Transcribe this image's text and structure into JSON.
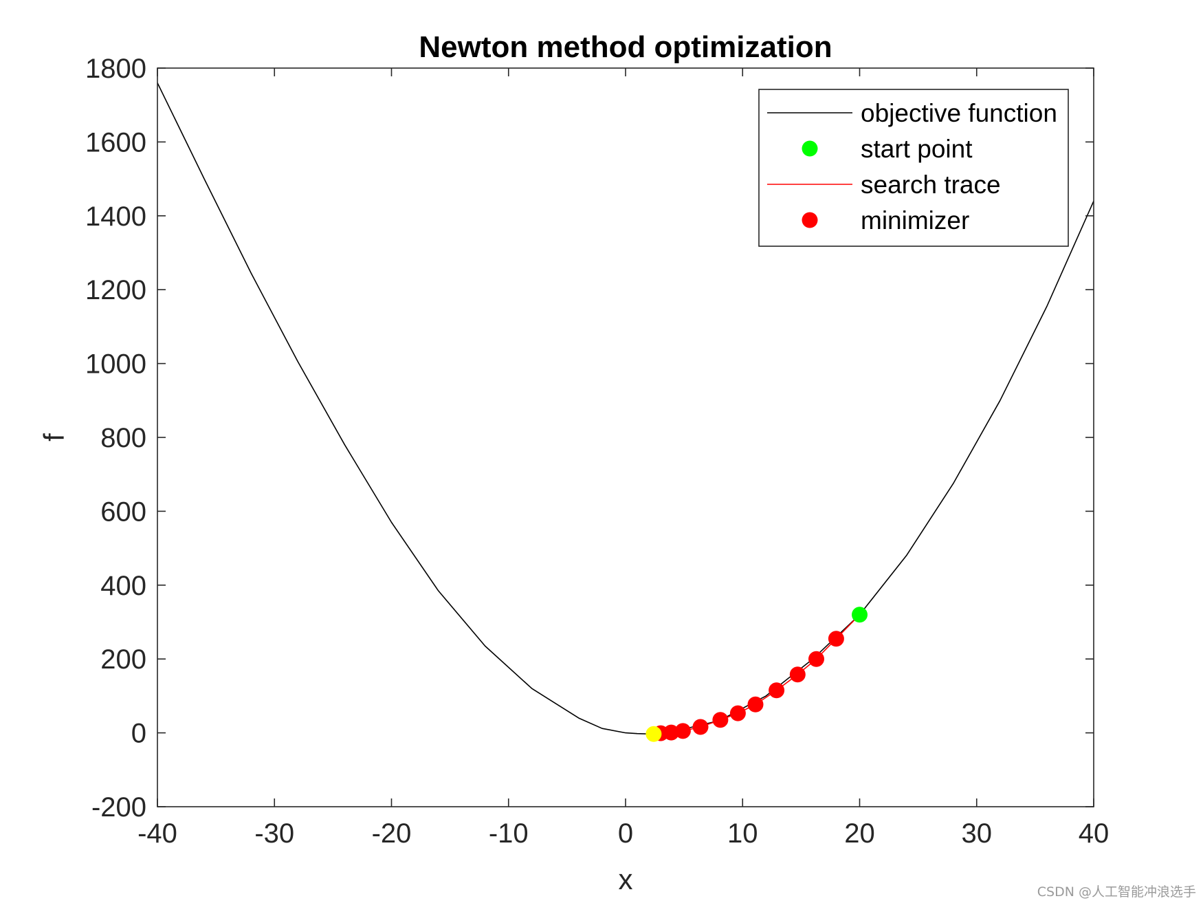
{
  "chart_data": {
    "type": "line",
    "title": "Newton method optimization",
    "xlabel": "x",
    "ylabel": "f",
    "xlim": [
      -40,
      40
    ],
    "ylim": [
      -200,
      1800
    ],
    "xticks": [
      -40,
      -30,
      -20,
      -10,
      0,
      10,
      20,
      30,
      40
    ],
    "yticks": [
      -200,
      0,
      200,
      400,
      600,
      800,
      1000,
      1200,
      1400,
      1600,
      1800
    ],
    "legend_position": "top-right",
    "grid": false,
    "series": [
      {
        "name": "objective function",
        "style": "line",
        "color": "#000000",
        "x": [
          -40,
          -36,
          -32,
          -28,
          -24,
          -20,
          -16,
          -12,
          -8,
          -4,
          -2,
          0,
          1,
          2,
          4,
          8,
          12,
          16,
          20,
          24,
          28,
          32,
          36,
          40
        ],
        "y": [
          1760,
          1500,
          1245,
          1005,
          780,
          570,
          385,
          235,
          120,
          40,
          12,
          0,
          -2,
          -3,
          3,
          33,
          100,
          200,
          320,
          480,
          675,
          900,
          1155,
          1440
        ]
      },
      {
        "name": "start point",
        "style": "marker",
        "color": "#00ff00",
        "x": [
          20
        ],
        "y": [
          320
        ]
      },
      {
        "name": "search trace",
        "style": "line",
        "color": "#ff0000",
        "x": [
          20,
          18.0,
          16.3,
          14.7,
          12.9,
          11.1,
          9.6,
          8.1,
          6.4,
          4.9,
          3.9,
          3.0,
          2.4
        ],
        "y": [
          320,
          255,
          200,
          158,
          115,
          77,
          53,
          35,
          16,
          5,
          1,
          -1,
          -3
        ]
      },
      {
        "name": "minimizer",
        "style": "marker",
        "color": "#ff0000",
        "x": [
          18.0,
          16.3,
          14.7,
          12.9,
          11.1,
          9.6,
          8.1,
          6.4,
          4.9,
          3.9,
          3.0
        ],
        "y": [
          255,
          200,
          158,
          115,
          77,
          53,
          35,
          16,
          5,
          1,
          -1
        ]
      },
      {
        "style": "marker",
        "color": "#ffff00",
        "x": [
          2.4
        ],
        "y": [
          -3
        ]
      }
    ]
  },
  "watermark": "CSDN @人工智能冲浪选手"
}
